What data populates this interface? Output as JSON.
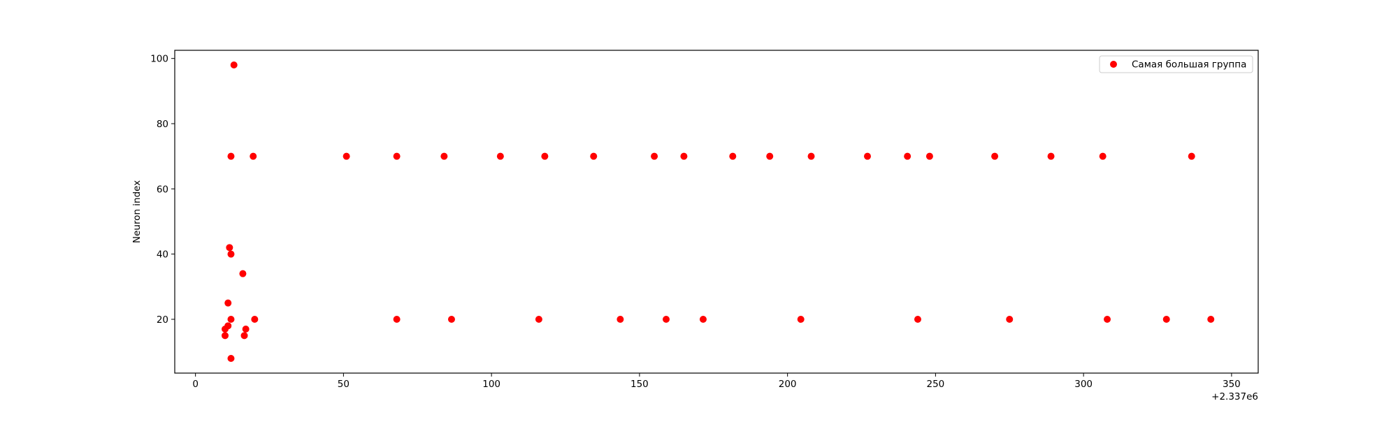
{
  "chart_data": {
    "type": "scatter",
    "title": "",
    "xlabel": "",
    "ylabel": "Neuron index",
    "x_offset_label": "+2.337e6",
    "xlim": [
      -7,
      359
    ],
    "ylim": [
      3.5,
      102.5
    ],
    "xticks": [
      0,
      50,
      100,
      150,
      200,
      250,
      300,
      350
    ],
    "yticks": [
      20,
      40,
      60,
      80,
      100
    ],
    "grid": false,
    "legend_position": "upper right",
    "colors": {
      "series": "#ff0000",
      "axes": "#000000",
      "background": "#ffffff"
    },
    "series": [
      {
        "name": "Самая большая группа",
        "points": [
          [
            10,
            17
          ],
          [
            10,
            15
          ],
          [
            11,
            25
          ],
          [
            11,
            18
          ],
          [
            11.5,
            42
          ],
          [
            12,
            40
          ],
          [
            12,
            70
          ],
          [
            12,
            20
          ],
          [
            12,
            8
          ],
          [
            13,
            98
          ],
          [
            16,
            34
          ],
          [
            16.5,
            15
          ],
          [
            17,
            17
          ],
          [
            19.5,
            70
          ],
          [
            20,
            20
          ],
          [
            51,
            70
          ],
          [
            68,
            70
          ],
          [
            68,
            20
          ],
          [
            84,
            70
          ],
          [
            86.5,
            20
          ],
          [
            103,
            70
          ],
          [
            116,
            20
          ],
          [
            118,
            70
          ],
          [
            134.5,
            70
          ],
          [
            143.5,
            20
          ],
          [
            155,
            70
          ],
          [
            159,
            20
          ],
          [
            165,
            70
          ],
          [
            171.5,
            20
          ],
          [
            181.5,
            70
          ],
          [
            194,
            70
          ],
          [
            204.5,
            20
          ],
          [
            208,
            70
          ],
          [
            227,
            70
          ],
          [
            240.5,
            70
          ],
          [
            244,
            20
          ],
          [
            248,
            70
          ],
          [
            270,
            70
          ],
          [
            275,
            20
          ],
          [
            289,
            70
          ],
          [
            306.5,
            70
          ],
          [
            308,
            20
          ],
          [
            328,
            20
          ],
          [
            336.5,
            70
          ],
          [
            343,
            20
          ]
        ]
      }
    ]
  }
}
